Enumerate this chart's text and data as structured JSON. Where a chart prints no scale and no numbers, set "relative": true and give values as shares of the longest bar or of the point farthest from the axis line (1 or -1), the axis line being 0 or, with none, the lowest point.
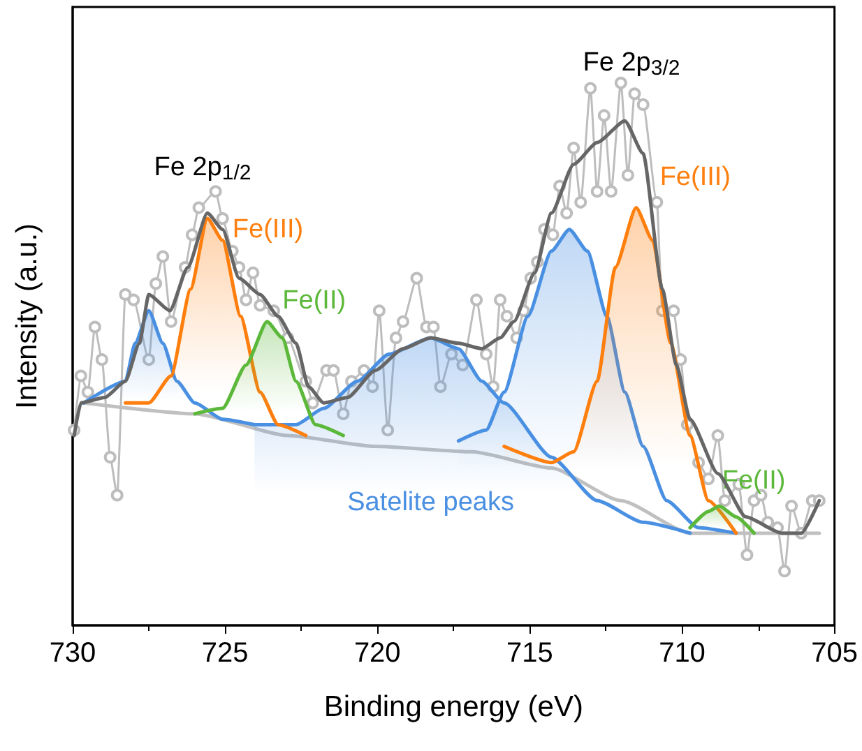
{
  "chart_data": {
    "type": "line",
    "xlabel": "Binding energy (eV)",
    "ylabel": "Intensity (a.u.)",
    "relative": true,
    "xlim": [
      730,
      705
    ],
    "xticks": [
      730,
      725,
      720,
      715,
      710,
      705
    ],
    "grid": false,
    "line_style": "solid",
    "annotations": [
      "Fe 2p$_{1/2}$",
      "Fe 2p$_{3/2}$"
    ],
    "series": [
      {
        "marker": "circle",
        "color": "#bdbdbd",
        "x": [
          729.95,
          729.73,
          729.5,
          729.27,
          729.04,
          728.77,
          728.54,
          728.27,
          728.0,
          727.5,
          727.27,
          727.04,
          726.77,
          726.31,
          726.08,
          725.86,
          725.31,
          725.08,
          724.76,
          724.54,
          724.31,
          724.08,
          723.85,
          723.4,
          722.94,
          722.35,
          722.12,
          721.67,
          721.44,
          721.12,
          720.85,
          720.44,
          720.16,
          719.94,
          719.66,
          719.39,
          719.16,
          718.71,
          718.39,
          718.16,
          717.93,
          717.57,
          717.2,
          716.75,
          716.43,
          716.2,
          715.97,
          715.75,
          715.43,
          715.2,
          714.97,
          714.75,
          714.52,
          714.24,
          714.02,
          713.79,
          713.56,
          713.33,
          713.01,
          712.79,
          712.56,
          712.33,
          712.01,
          711.78,
          711.56,
          711.28,
          710.83,
          710.65,
          710.28,
          710.05,
          709.83,
          709.46,
          709.14,
          708.83,
          708.6,
          708.14,
          707.87,
          707.64,
          707.41,
          707.19,
          706.87,
          706.64,
          706.41,
          706.09,
          705.73,
          705.5
        ],
        "values": [
          0.36,
          0.46,
          0.43,
          0.55,
          0.49,
          0.31,
          0.24,
          0.61,
          0.6,
          0.49,
          0.63,
          0.68,
          0.56,
          0.66,
          0.72,
          0.77,
          0.8,
          0.75,
          0.69,
          0.66,
          0.6,
          0.65,
          0.59,
          0.58,
          0.53,
          0.45,
          0.41,
          0.47,
          0.47,
          0.39,
          0.45,
          0.47,
          0.44,
          0.58,
          0.36,
          0.53,
          0.56,
          0.64,
          0.55,
          0.55,
          0.44,
          0.5,
          0.48,
          0.6,
          0.5,
          0.44,
          0.6,
          0.57,
          0.53,
          0.58,
          0.64,
          0.67,
          0.73,
          0.72,
          0.81,
          0.76,
          0.88,
          0.78,
          0.99,
          0.8,
          0.94,
          0.8,
          1.0,
          0.83,
          0.98,
          0.96,
          0.78,
          0.58,
          0.58,
          0.49,
          0.37,
          0.3,
          0.27,
          0.35,
          0.23,
          0.26,
          0.13,
          0.23,
          0.24,
          0.19,
          0.18,
          0.1,
          0.22,
          0.17,
          0.23,
          0.23
        ]
      },
      {
        "color": "#c0c0c0",
        "x": [
          729.64,
          725.99,
          722.94,
          720.07,
          716.89,
          714.29,
          712.01,
          709.74,
          707.78,
          705.5
        ],
        "values": [
          0.41,
          0.39,
          0.35,
          0.33,
          0.32,
          0.29,
          0.23,
          0.17,
          0.17,
          0.17
        ]
      },
      {
        "type": "area",
        "color": "#4a90e2",
        "x": [
          729.64,
          728.27,
          727.95,
          727.5,
          727.04,
          726.58,
          725.99,
          725.08,
          724.03
        ],
        "values": [
          0.41,
          0.45,
          0.52,
          0.58,
          0.52,
          0.45,
          0.41,
          0.38,
          0.37
        ]
      },
      {
        "type": "area",
        "name": "Satelite peaks",
        "color": "#4a90e2",
        "x": [
          724.03,
          722.67,
          721.76,
          720.66,
          719.62,
          718.25,
          717.34,
          716.57,
          715.84,
          714.29,
          712.79,
          711.28,
          709.74
        ],
        "values": [
          0.37,
          0.37,
          0.4,
          0.45,
          0.5,
          0.53,
          0.51,
          0.45,
          0.41,
          0.31,
          0.23,
          0.19,
          0.17
        ]
      },
      {
        "type": "area",
        "color": "#4a90e2",
        "x": [
          717.34,
          716.43,
          715.84,
          715.06,
          714.29,
          713.7,
          713.11,
          712.47,
          711.88,
          711.28,
          710.51,
          709.46,
          708.23
        ],
        "values": [
          0.34,
          0.36,
          0.43,
          0.57,
          0.69,
          0.73,
          0.69,
          0.57,
          0.43,
          0.33,
          0.23,
          0.18,
          0.17
        ]
      },
      {
        "type": "area",
        "name": "Fe(III)",
        "color": "#ff7f0e",
        "x": [
          728.27,
          727.5,
          726.77,
          726.13,
          725.58,
          725.08,
          724.49,
          723.85,
          723.26,
          722.35
        ],
        "values": [
          0.41,
          0.41,
          0.46,
          0.62,
          0.75,
          0.71,
          0.57,
          0.43,
          0.37,
          0.35
        ]
      },
      {
        "type": "area",
        "name": "Fe(II)",
        "color": "#5cb83a",
        "x": [
          725.99,
          725.08,
          724.31,
          723.62,
          723.12,
          722.67,
          722.03,
          721.12
        ],
        "values": [
          0.39,
          0.4,
          0.48,
          0.56,
          0.53,
          0.45,
          0.37,
          0.35
        ]
      },
      {
        "type": "area",
        "name": "Fe(III)",
        "color": "#ff7f0e",
        "x": [
          715.84,
          714.29,
          713.56,
          712.79,
          712.19,
          711.51,
          710.97,
          710.37,
          709.74,
          709.14,
          708.23
        ],
        "values": [
          0.33,
          0.3,
          0.32,
          0.45,
          0.66,
          0.77,
          0.71,
          0.52,
          0.35,
          0.23,
          0.17
        ]
      },
      {
        "type": "area",
        "name": "Fe(II)",
        "color": "#5cb83a",
        "x": [
          709.74,
          709.14,
          708.78,
          708.23,
          707.64
        ],
        "values": [
          0.18,
          0.21,
          0.22,
          0.2,
          0.17
        ]
      },
      {
        "color": "#666666",
        "x": [
          729.95,
          729.73,
          728.95,
          728.27,
          727.81,
          727.5,
          726.81,
          726.22,
          725.58,
          725.08,
          724.54,
          723.85,
          723.26,
          722.67,
          722.26,
          721.76,
          720.98,
          720.07,
          719.16,
          718.25,
          717.34,
          716.57,
          715.97,
          715.52,
          714.84,
          714.29,
          713.56,
          712.79,
          711.88,
          711.28,
          710.65,
          710.19,
          709.74,
          708.83,
          707.91,
          706.73,
          706.09,
          705.5
        ],
        "values": [
          0.35,
          0.41,
          0.42,
          0.45,
          0.52,
          0.61,
          0.58,
          0.66,
          0.76,
          0.73,
          0.64,
          0.61,
          0.57,
          0.52,
          0.44,
          0.41,
          0.42,
          0.47,
          0.51,
          0.53,
          0.52,
          0.51,
          0.53,
          0.56,
          0.65,
          0.76,
          0.85,
          0.89,
          0.93,
          0.87,
          0.62,
          0.48,
          0.38,
          0.28,
          0.2,
          0.17,
          0.17,
          0.23
        ]
      }
    ]
  }
}
